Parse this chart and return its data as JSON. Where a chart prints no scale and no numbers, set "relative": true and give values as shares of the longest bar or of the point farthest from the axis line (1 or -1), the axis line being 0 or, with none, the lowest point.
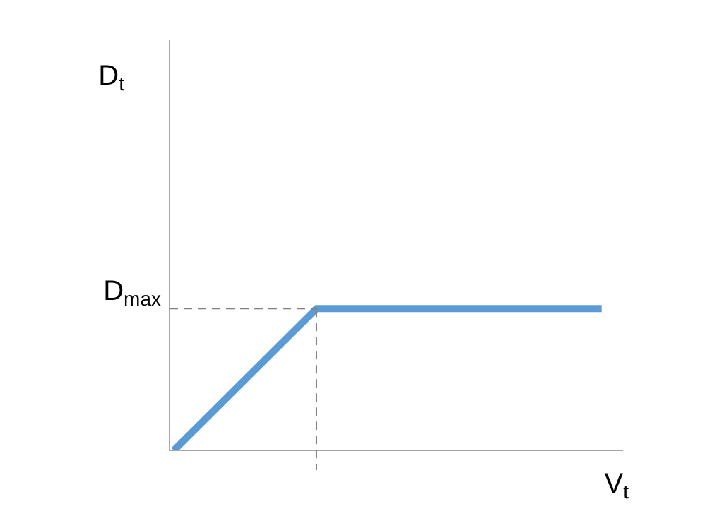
{
  "chart_data": {
    "type": "line",
    "relative": true,
    "xlabel": "V$_{t}$",
    "annotations": [
      "D$_{t}$"
    ],
    "categories": [
      null,
      null,
      null,
      null
    ],
    "series": [
      {
        "color": "#5b9bd5",
        "values": [
          0,
          1,
          1,
          1
        ]
      }
    ],
    "ref_lines": [
      {
        "axis": "y",
        "value": 1,
        "label": "D$_{max}$",
        "line_style": "dashed",
        "color": "#7f7f7f"
      }
    ],
    "legend": false,
    "marker": "none",
    "line_style": "solid"
  }
}
